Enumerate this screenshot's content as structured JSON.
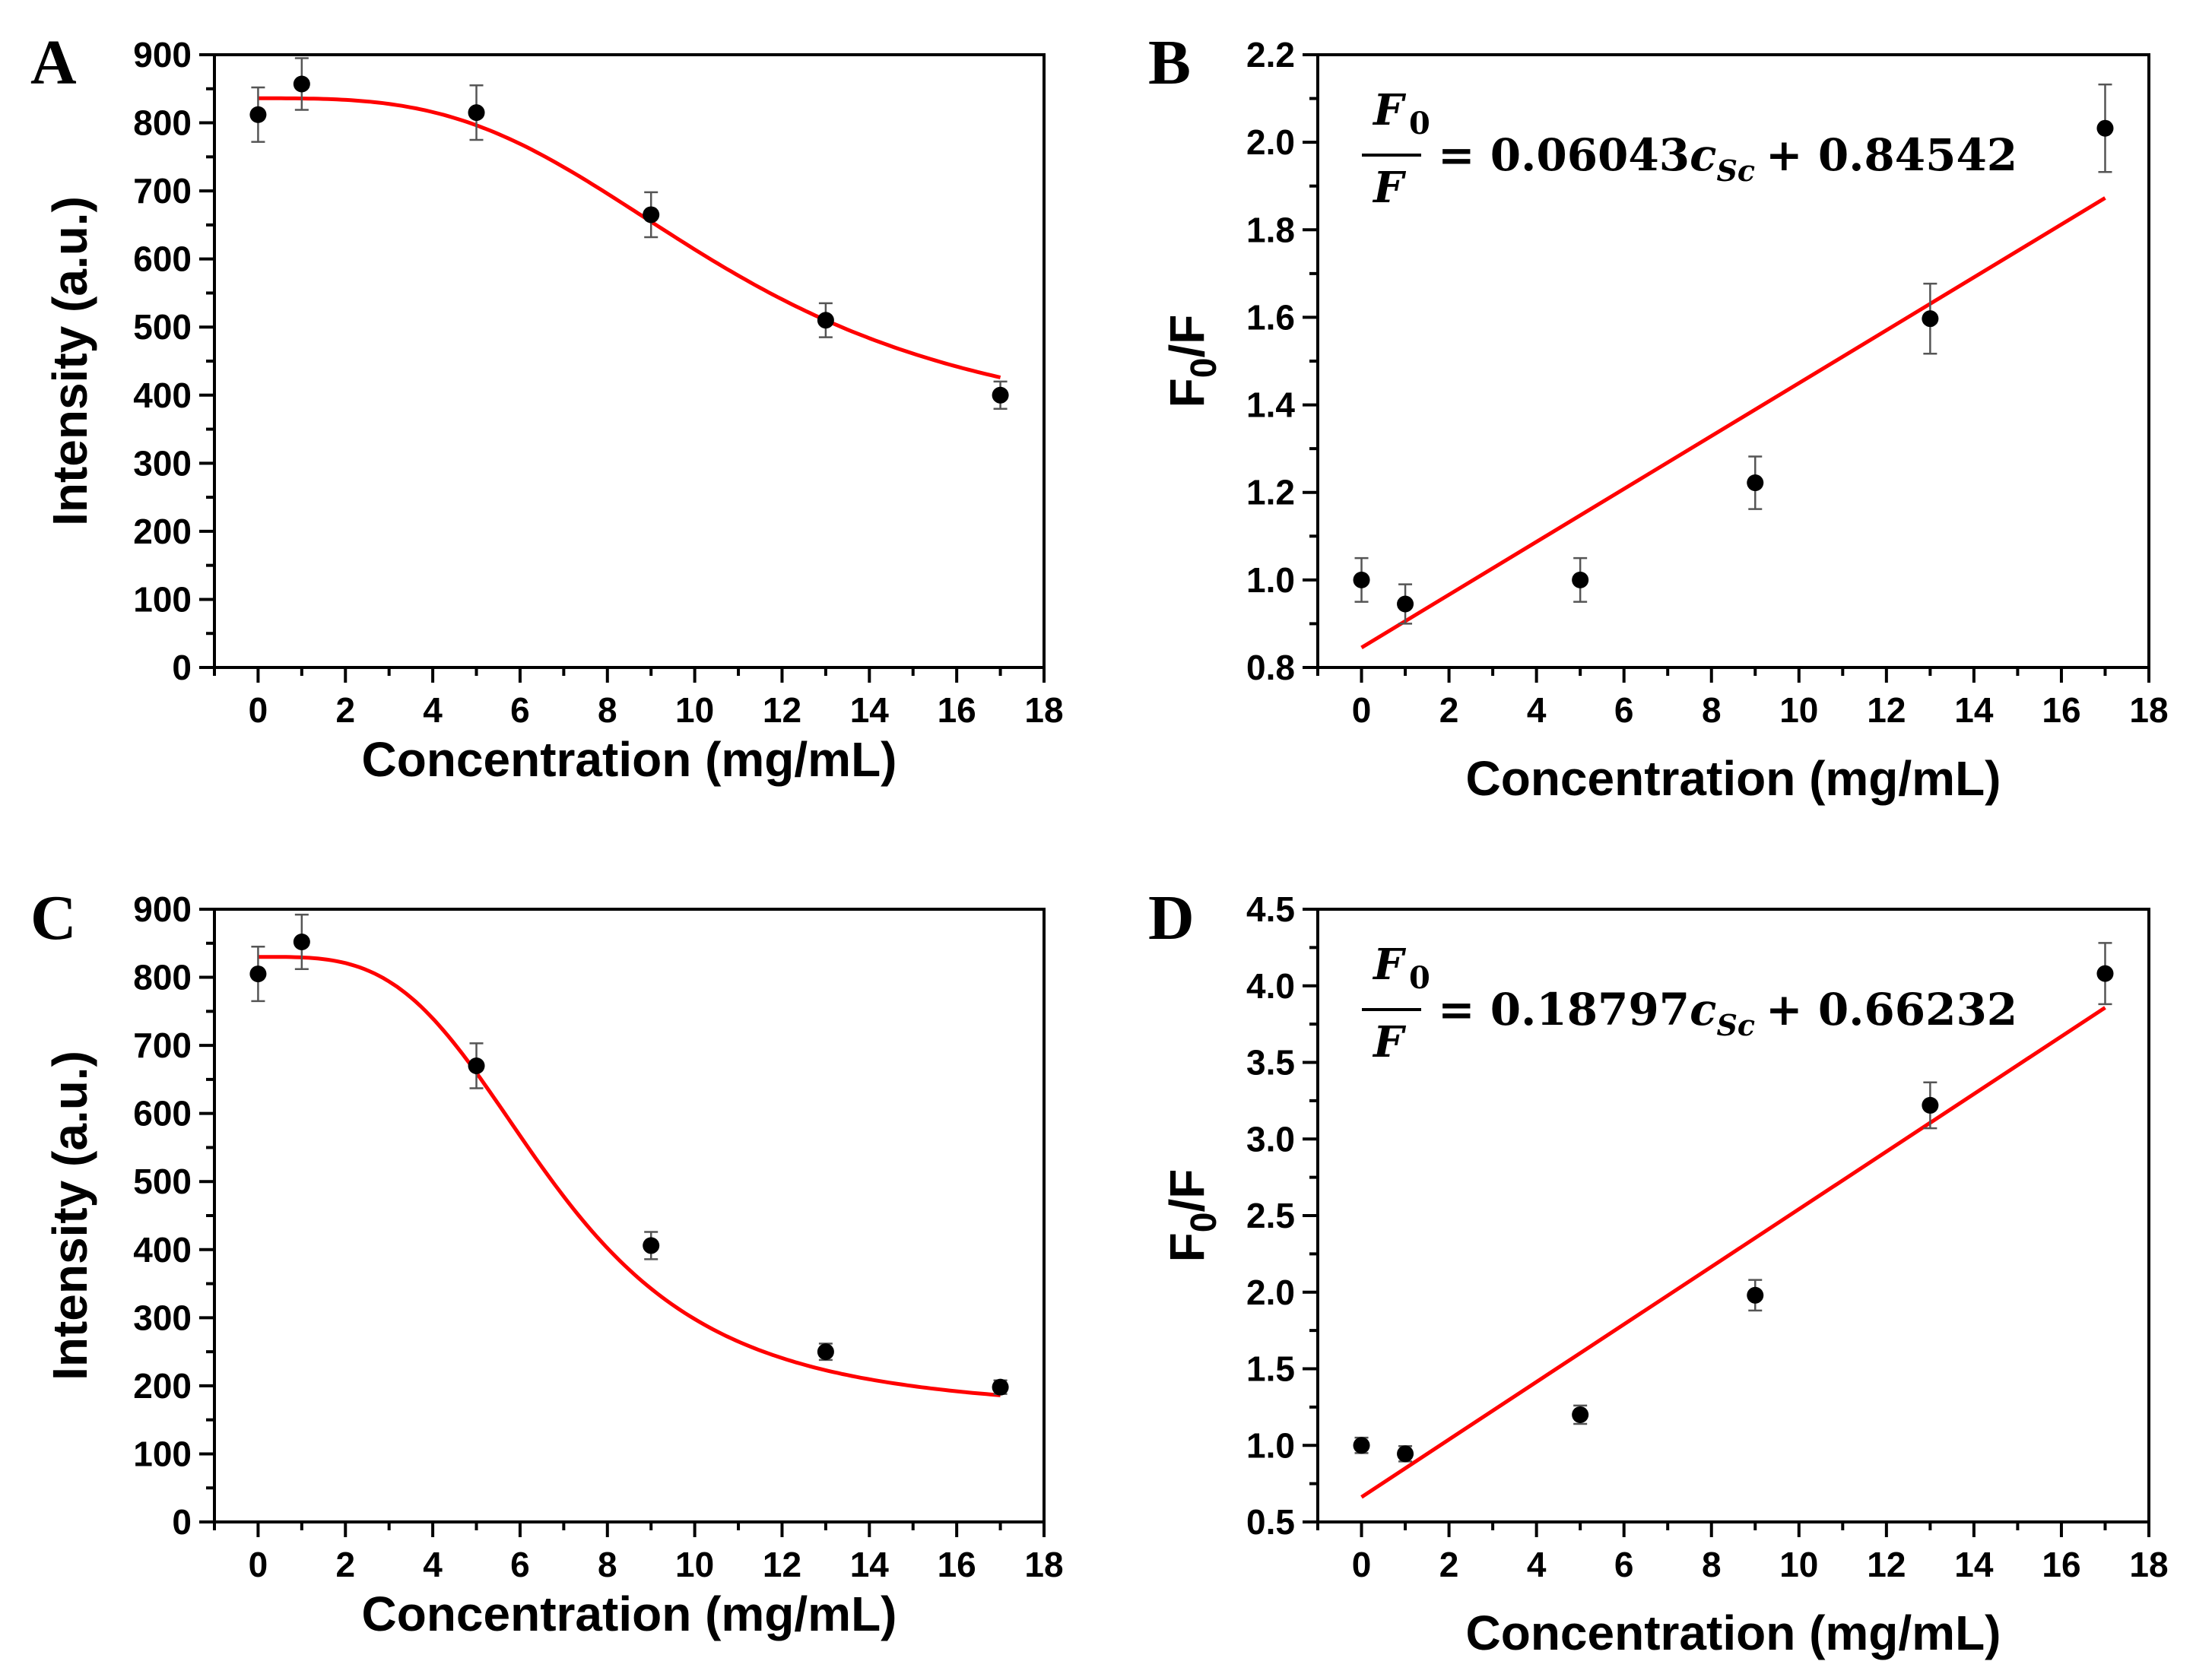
{
  "chart_data": [
    {
      "id": "A",
      "type": "scatter",
      "panel_label": "A",
      "xlabel": "Concentration (mg/mL)",
      "ylabel": "Intensity (a.u.)",
      "xlim": [
        -1,
        18
      ],
      "ylim": [
        0,
        900
      ],
      "xticks": [
        "0",
        "2",
        "4",
        "6",
        "8",
        "10",
        "12",
        "14",
        "16",
        "18"
      ],
      "yticks": [
        "0",
        "100",
        "200",
        "300",
        "400",
        "500",
        "600",
        "700",
        "800",
        "900"
      ],
      "x": [
        0,
        1,
        5,
        9,
        13,
        17
      ],
      "y": [
        812,
        857,
        815,
        665,
        510,
        400
      ],
      "err": [
        40,
        38,
        40,
        33,
        25,
        20
      ],
      "fit": {
        "type": "logistic",
        "A1": 836,
        "A2": 330,
        "x0": 10.8,
        "p": 3.2,
        "color": "#ff0000"
      },
      "grid": false,
      "legend": "none"
    },
    {
      "id": "B",
      "type": "scatter",
      "panel_label": "B",
      "xlabel": "Concentration (mg/mL)",
      "ylabel": "F0/F",
      "ylabel_main": "F",
      "ylabel_sub": "0",
      "ylabel_tail": "/F",
      "xlim": [
        -1,
        18
      ],
      "ylim": [
        0.8,
        2.2
      ],
      "xticks": [
        "0",
        "2",
        "4",
        "6",
        "8",
        "10",
        "12",
        "14",
        "16",
        "18"
      ],
      "yticks": [
        "0.8",
        "1.0",
        "1.2",
        "1.4",
        "1.6",
        "1.8",
        "2.0",
        "2.2"
      ],
      "x": [
        0,
        1,
        5,
        9,
        13,
        17
      ],
      "y": [
        1.0,
        0.945,
        1.0,
        1.222,
        1.597,
        2.032
      ],
      "err": [
        0.05,
        0.045,
        0.05,
        0.06,
        0.08,
        0.1
      ],
      "fit": {
        "type": "linear",
        "slope": 0.06043,
        "intercept": 0.84542,
        "color": "#ff0000"
      },
      "equation": {
        "num": "F",
        "num_sub": "0",
        "den": "F",
        "rhs_coef": "= 0.06043",
        "var": "c",
        "var_sub": "Sc",
        "rhs_tail": "+ 0.84542"
      },
      "grid": false,
      "legend": "none"
    },
    {
      "id": "C",
      "type": "scatter",
      "panel_label": "C",
      "xlabel": "Concentration (mg/mL)",
      "ylabel": "Intensity (a.u.)",
      "xlim": [
        -1,
        18
      ],
      "ylim": [
        0,
        900
      ],
      "xticks": [
        "0",
        "2",
        "4",
        "6",
        "8",
        "10",
        "12",
        "14",
        "16",
        "18"
      ],
      "yticks": [
        "0",
        "100",
        "200",
        "300",
        "400",
        "500",
        "600",
        "700",
        "800",
        "900"
      ],
      "x": [
        0,
        1,
        5,
        9,
        13,
        17
      ],
      "y": [
        805,
        852,
        670,
        406,
        250,
        198
      ],
      "err": [
        40,
        40,
        33,
        20,
        12,
        10
      ],
      "fit": {
        "type": "logistic",
        "A1": 830,
        "A2": 160,
        "x0": 6.8,
        "p": 3.5,
        "color": "#ff0000"
      },
      "grid": false,
      "legend": "none"
    },
    {
      "id": "D",
      "type": "scatter",
      "panel_label": "D",
      "xlabel": "Concentration (mg/mL)",
      "ylabel": "F0/F",
      "ylabel_main": "F",
      "ylabel_sub": "0",
      "ylabel_tail": "/F",
      "xlim": [
        -1,
        18
      ],
      "ylim": [
        0.5,
        4.5
      ],
      "xticks": [
        "0",
        "2",
        "4",
        "6",
        "8",
        "10",
        "12",
        "14",
        "16",
        "18"
      ],
      "yticks": [
        "0.5",
        "1.0",
        "1.5",
        "2.0",
        "2.5",
        "3.0",
        "3.5",
        "4.0",
        "4.5"
      ],
      "x": [
        0,
        1,
        5,
        9,
        13,
        17
      ],
      "y": [
        1.0,
        0.945,
        1.2,
        1.98,
        3.22,
        4.08
      ],
      "err": [
        0.05,
        0.05,
        0.06,
        0.1,
        0.15,
        0.2
      ],
      "fit": {
        "type": "linear",
        "slope": 0.18797,
        "intercept": 0.66232,
        "color": "#ff0000"
      },
      "equation": {
        "num": "F",
        "num_sub": "0",
        "den": "F",
        "rhs_coef": "= 0.18797",
        "var": "c",
        "var_sub": "Sc",
        "rhs_tail": "+ 0.66232"
      },
      "grid": false,
      "legend": "none"
    }
  ]
}
